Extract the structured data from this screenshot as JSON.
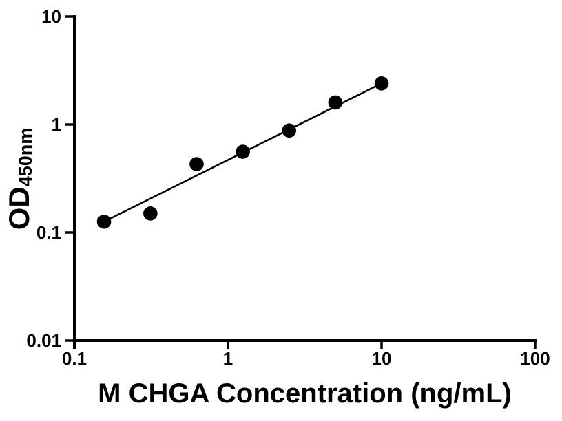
{
  "figure": {
    "background": "#ffffff",
    "foreground": "#000000"
  },
  "chart_data": {
    "type": "scatter",
    "title": "",
    "xlabel": "M CHGA Concentration (ng/mL)",
    "ylabel_main": "OD",
    "ylabel_subscript": "450nm",
    "x_scale": "log",
    "y_scale": "log",
    "xlim": [
      0.1,
      100
    ],
    "ylim": [
      0.01,
      10
    ],
    "x_tick_values": [
      0.1,
      1,
      10,
      100
    ],
    "x_tick_labels": [
      "0.1",
      "1",
      "10",
      "100"
    ],
    "y_tick_values": [
      10,
      1,
      0.1,
      0.01
    ],
    "y_tick_labels": [
      "10",
      "1",
      "0.1",
      "0.01"
    ],
    "grid": false,
    "legend": null,
    "series": [
      {
        "name": "standard-curve-points",
        "marker": "filled-circle",
        "color": "#000000",
        "points": [
          {
            "x": 0.156,
            "y": 0.126
          },
          {
            "x": 0.3125,
            "y": 0.15
          },
          {
            "x": 0.625,
            "y": 0.43
          },
          {
            "x": 1.25,
            "y": 0.56
          },
          {
            "x": 2.5,
            "y": 0.88
          },
          {
            "x": 5,
            "y": 1.6
          },
          {
            "x": 10,
            "y": 2.4
          }
        ]
      }
    ],
    "trendline": {
      "type": "linear-fit-loglog",
      "color": "#000000",
      "x_start": 0.156,
      "y_start": 0.126,
      "x_end": 10,
      "y_end": 2.4
    }
  }
}
